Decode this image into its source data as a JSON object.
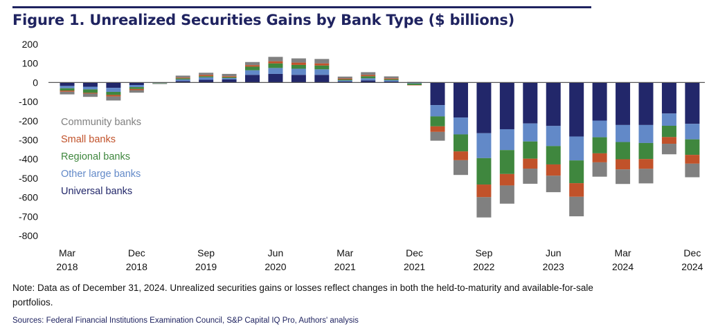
{
  "title": "Figure 1. Unrealized Securities Gains by Bank Type ($ billions)",
  "note": "Note: Data as of December 31, 2024. Unrealized securities gains or losses reflect changes in both the held-to-maturity and available-for-sale portfolios.",
  "sources": "Sources: Federal Financial Institutions Examination Council, S&P Capital IQ Pro, Authors' analysis",
  "chart_data": {
    "type": "bar",
    "stacked": true,
    "title": "Figure 1. Unrealized Securities Gains by Bank Type ($ billions)",
    "xlabel": "",
    "ylabel": "",
    "ylim": [
      -800,
      200
    ],
    "yticks": [
      200,
      100,
      0,
      -100,
      -200,
      -300,
      -400,
      -500,
      -600,
      -700,
      -800
    ],
    "grid": false,
    "legend": "left-inside",
    "categories": [
      "Mar 2018",
      "Jun 2018",
      "Sep 2018",
      "Dec 2018",
      "Mar 2019",
      "Jun 2019",
      "Sep 2019",
      "Dec 2019",
      "Mar 2020",
      "Jun 2020",
      "Sep 2020",
      "Dec 2020",
      "Mar 2021",
      "Jun 2021",
      "Sep 2021",
      "Dec 2021",
      "Mar 2022",
      "Jun 2022",
      "Sep 2022",
      "Dec 2022",
      "Mar 2023",
      "Jun 2023",
      "Sep 2023",
      "Dec 2023",
      "Mar 2024",
      "Jun 2024",
      "Sep 2024",
      "Dec 2024"
    ],
    "xtick_labels": [
      {
        "month": "Mar",
        "year": "2018"
      },
      {
        "month": "Dec",
        "year": "2018"
      },
      {
        "month": "Sep",
        "year": "2019"
      },
      {
        "month": "Jun",
        "year": "2020"
      },
      {
        "month": "Mar",
        "year": "2021"
      },
      {
        "month": "Dec",
        "year": "2021"
      },
      {
        "month": "Sep",
        "year": "2022"
      },
      {
        "month": "Jun",
        "year": "2023"
      },
      {
        "month": "Mar",
        "year": "2024"
      },
      {
        "month": "Dec",
        "year": "2024"
      }
    ],
    "series": [
      {
        "name": "Universal banks",
        "color": "#22276a",
        "values": [
          -18,
          -22,
          -28,
          -13,
          -1,
          8,
          14,
          16,
          40,
          45,
          40,
          40,
          5,
          11,
          5,
          -2,
          -118,
          -183,
          -265,
          -244,
          -214,
          -227,
          -282,
          -199,
          -222,
          -222,
          -162,
          -216
        ]
      },
      {
        "name": "Other large banks",
        "color": "#6289c8",
        "values": [
          -12,
          -14,
          -21,
          -11,
          -2,
          8,
          13,
          7,
          24,
          31,
          32,
          29,
          6,
          11,
          7,
          -3,
          -59,
          -88,
          -130,
          -109,
          -94,
          -105,
          -125,
          -87,
          -89,
          -94,
          -64,
          -81
        ]
      },
      {
        "name": "Regional banks",
        "color": "#3f873e",
        "values": [
          -12,
          -18,
          -16,
          -10,
          -2,
          6,
          6,
          5,
          19,
          24,
          20,
          20,
          5,
          11,
          5,
          -8,
          -52,
          -89,
          -138,
          -125,
          -90,
          -96,
          -119,
          -84,
          -90,
          -84,
          -59,
          -81
        ]
      },
      {
        "name": "Small banks",
        "color": "#c1522a",
        "values": [
          -6,
          -4,
          -8,
          -6,
          0,
          4,
          7,
          5,
          8,
          11,
          12,
          11,
          5,
          7,
          5,
          -1,
          -29,
          -46,
          -66,
          -60,
          -52,
          -59,
          -71,
          -47,
          -53,
          -51,
          -35,
          -46
        ]
      },
      {
        "name": "Community banks",
        "color": "#808080",
        "values": [
          -14,
          -17,
          -21,
          -13,
          -3,
          10,
          11,
          12,
          16,
          23,
          22,
          23,
          10,
          14,
          10,
          3,
          -46,
          -77,
          -106,
          -95,
          -79,
          -86,
          -102,
          -75,
          -76,
          -76,
          -55,
          -71
        ]
      }
    ]
  }
}
